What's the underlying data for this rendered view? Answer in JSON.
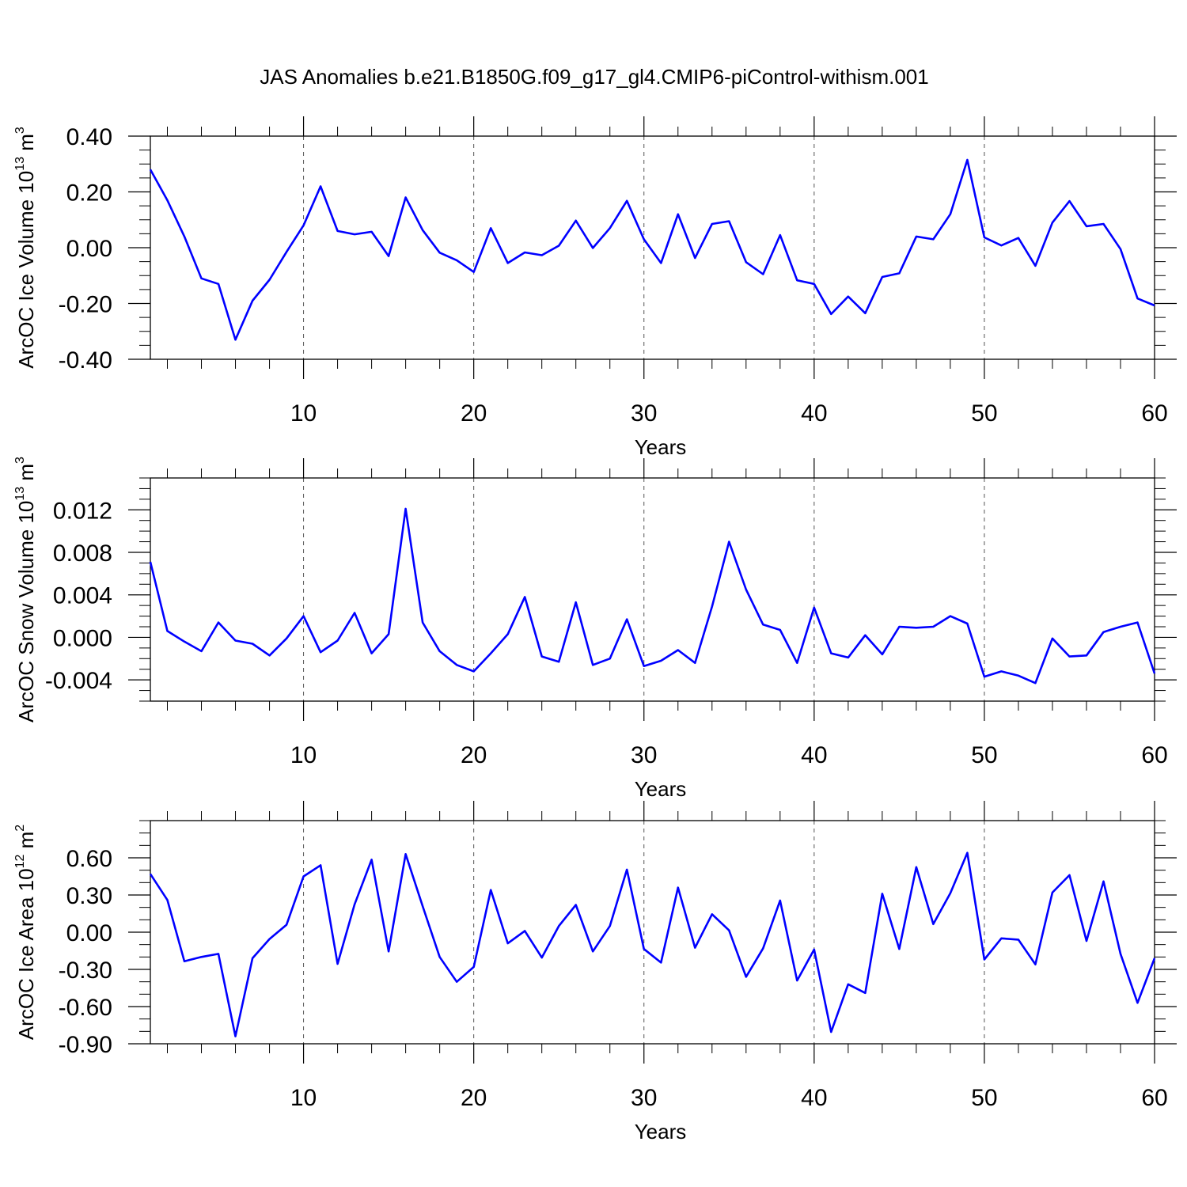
{
  "figure": {
    "title": "JAS Anomalies b.e21.B1850G.f09_g17_gl4.CMIP6-piControl-withism.001"
  },
  "chart_data": [
    {
      "type": "line",
      "title": "",
      "xlabel": "Years",
      "ylabel_text": "ArcOC Ice Volume 10",
      "ylabel_exp": "13",
      "ylabel_unit": " m",
      "ylabel_unit_exp": "3",
      "xlim": [
        1,
        60
      ],
      "ylim": [
        -0.4,
        0.4
      ],
      "xticks": [
        10,
        20,
        30,
        40,
        50,
        60
      ],
      "xtick_labels": [
        "10",
        "20",
        "30",
        "40",
        "50",
        "60"
      ],
      "yticks": [
        -0.4,
        -0.2,
        0.0,
        0.2,
        0.4
      ],
      "ytick_labels": [
        "-0.40",
        "-0.20",
        "0.00",
        "0.20",
        "0.40"
      ],
      "yminor_step": 0.05,
      "vgrid": [
        10,
        20,
        30,
        40,
        50
      ],
      "line_color": "#0000ff",
      "x": [
        1,
        2,
        3,
        4,
        5,
        6,
        7,
        8,
        9,
        10,
        11,
        12,
        13,
        14,
        15,
        16,
        17,
        18,
        19,
        20,
        21,
        22,
        23,
        24,
        25,
        26,
        27,
        28,
        29,
        30,
        31,
        32,
        33,
        34,
        35,
        36,
        37,
        38,
        39,
        40,
        41,
        42,
        43,
        44,
        45,
        46,
        47,
        48,
        49,
        50,
        51,
        52,
        53,
        54,
        55,
        56,
        57,
        58,
        59,
        60
      ],
      "values": [
        0.28,
        0.17,
        0.04,
        -0.11,
        -0.13,
        -0.33,
        -0.19,
        -0.115,
        -0.015,
        0.08,
        0.22,
        0.06,
        0.048,
        0.057,
        -0.03,
        0.18,
        0.063,
        -0.018,
        -0.045,
        -0.087,
        0.07,
        -0.055,
        -0.017,
        -0.027,
        0.007,
        0.097,
        -0.001,
        0.07,
        0.168,
        0.03,
        -0.055,
        0.12,
        -0.037,
        0.085,
        0.095,
        -0.052,
        -0.095,
        0.045,
        -0.117,
        -0.13,
        -0.238,
        -0.175,
        -0.235,
        -0.105,
        -0.092,
        0.04,
        0.03,
        0.12,
        0.315,
        0.037,
        0.008,
        0.035,
        -0.065,
        0.09,
        0.167,
        0.077,
        0.085,
        -0.005,
        -0.182,
        -0.207
      ]
    },
    {
      "type": "line",
      "title": "",
      "xlabel": "Years",
      "ylabel_text": "ArcOC Snow Volume 10",
      "ylabel_exp": "13",
      "ylabel_unit": " m",
      "ylabel_unit_exp": "3",
      "xlim": [
        1,
        60
      ],
      "ylim": [
        -0.006,
        0.015
      ],
      "xticks": [
        10,
        20,
        30,
        40,
        50,
        60
      ],
      "xtick_labels": [
        "10",
        "20",
        "30",
        "40",
        "50",
        "60"
      ],
      "yticks": [
        -0.004,
        0.0,
        0.004,
        0.008,
        0.012
      ],
      "ytick_labels": [
        "-0.004",
        "0.000",
        "0.004",
        "0.008",
        "0.012"
      ],
      "yminor_step": 0.001,
      "vgrid": [
        10,
        20,
        30,
        40,
        50
      ],
      "line_color": "#0000ff",
      "x": [
        1,
        2,
        3,
        4,
        5,
        6,
        7,
        8,
        9,
        10,
        11,
        12,
        13,
        14,
        15,
        16,
        17,
        18,
        19,
        20,
        21,
        22,
        23,
        24,
        25,
        26,
        27,
        28,
        29,
        30,
        31,
        32,
        33,
        34,
        35,
        36,
        37,
        38,
        39,
        40,
        41,
        42,
        43,
        44,
        45,
        46,
        47,
        48,
        49,
        50,
        51,
        52,
        53,
        54,
        55,
        56,
        57,
        58,
        59,
        60
      ],
      "values": [
        0.0071,
        0.0006,
        -0.0004,
        -0.0013,
        0.0014,
        -0.0003,
        -0.0006,
        -0.0017,
        -0.0001,
        0.002,
        -0.0014,
        -0.0003,
        0.0023,
        -0.0015,
        0.0003,
        0.0121,
        0.0014,
        -0.0013,
        -0.0026,
        -0.0032,
        -0.0015,
        0.0003,
        0.0038,
        -0.0018,
        -0.0023,
        0.0033,
        -0.0026,
        -0.002,
        0.0017,
        -0.0027,
        -0.0022,
        -0.0012,
        -0.0024,
        0.0029,
        0.009,
        0.0045,
        0.0012,
        0.0007,
        -0.0024,
        0.0028,
        -0.0015,
        -0.0019,
        0.0002,
        -0.0016,
        0.001,
        0.0009,
        0.001,
        0.002,
        0.0013,
        -0.0037,
        -0.0032,
        -0.0036,
        -0.0043,
        -0.0001,
        -0.0018,
        -0.0017,
        0.0005,
        0.001,
        0.0014,
        -0.0034
      ]
    },
    {
      "type": "line",
      "title": "",
      "xlabel": "Years",
      "ylabel_text": "ArcOC Ice Area 10",
      "ylabel_exp": "12",
      "ylabel_unit": " m",
      "ylabel_unit_exp": "2",
      "xlim": [
        1,
        60
      ],
      "ylim": [
        -0.9,
        0.9
      ],
      "xticks": [
        10,
        20,
        30,
        40,
        50,
        60
      ],
      "xtick_labels": [
        "10",
        "20",
        "30",
        "40",
        "50",
        "60"
      ],
      "yticks": [
        -0.9,
        -0.6,
        -0.3,
        0.0,
        0.3,
        0.6
      ],
      "ytick_labels": [
        "-0.90",
        "-0.60",
        "-0.30",
        "0.00",
        "0.30",
        "0.60"
      ],
      "yminor_step": 0.1,
      "vgrid": [
        10,
        20,
        30,
        40,
        50
      ],
      "line_color": "#0000ff",
      "x": [
        1,
        2,
        3,
        4,
        5,
        6,
        7,
        8,
        9,
        10,
        11,
        12,
        13,
        14,
        15,
        16,
        17,
        18,
        19,
        20,
        21,
        22,
        23,
        24,
        25,
        26,
        27,
        28,
        29,
        30,
        31,
        32,
        33,
        34,
        35,
        36,
        37,
        38,
        39,
        40,
        41,
        42,
        43,
        44,
        45,
        46,
        47,
        48,
        49,
        50,
        51,
        52,
        53,
        54,
        55,
        56,
        57,
        58,
        59,
        60
      ],
      "values": [
        0.47,
        0.26,
        -0.235,
        -0.2,
        -0.175,
        -0.84,
        -0.21,
        -0.055,
        0.06,
        0.45,
        0.54,
        -0.255,
        0.225,
        0.585,
        -0.155,
        0.63,
        0.21,
        -0.2,
        -0.4,
        -0.28,
        0.34,
        -0.09,
        0.01,
        -0.205,
        0.05,
        0.22,
        -0.155,
        0.05,
        0.505,
        -0.135,
        -0.245,
        0.36,
        -0.125,
        0.145,
        0.015,
        -0.36,
        -0.13,
        0.255,
        -0.39,
        -0.14,
        -0.805,
        -0.42,
        -0.49,
        0.31,
        -0.135,
        0.525,
        0.065,
        0.315,
        0.64,
        -0.22,
        -0.05,
        -0.06,
        -0.26,
        0.32,
        0.46,
        -0.07,
        0.41,
        -0.175,
        -0.57,
        -0.21
      ]
    }
  ]
}
